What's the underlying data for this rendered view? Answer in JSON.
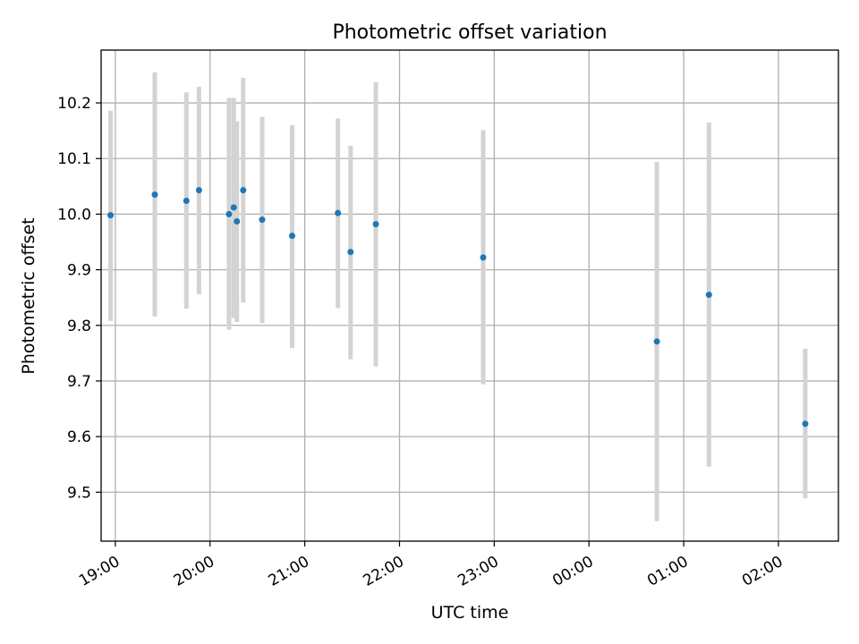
{
  "chart_data": {
    "type": "scatter",
    "title": "Photometric offset variation",
    "xlabel": "UTC time",
    "ylabel": "Photometric offset",
    "x_axis_kind": "time",
    "xlim": [
      "2000-01-01T18:51",
      "2000-01-02T02:38"
    ],
    "ylim": [
      9.412,
      10.295
    ],
    "xticks": [
      {
        "t": "2000-01-01T19:00",
        "label": "19:00"
      },
      {
        "t": "2000-01-01T20:00",
        "label": "20:00"
      },
      {
        "t": "2000-01-01T21:00",
        "label": "21:00"
      },
      {
        "t": "2000-01-01T22:00",
        "label": "22:00"
      },
      {
        "t": "2000-01-01T23:00",
        "label": "23:00"
      },
      {
        "t": "2000-01-02T00:00",
        "label": "00:00"
      },
      {
        "t": "2000-01-02T01:00",
        "label": "01:00"
      },
      {
        "t": "2000-01-02T02:00",
        "label": "02:00"
      }
    ],
    "yticks": [
      9.5,
      9.6,
      9.7,
      9.8,
      9.9,
      10.0,
      10.1,
      10.2
    ],
    "ytick_labels": [
      "9.5",
      "9.6",
      "9.7",
      "9.8",
      "9.9",
      "10.0",
      "10.1",
      "10.2"
    ],
    "grid": true,
    "point_color": "#1f77b4",
    "errorbar_color": "#d3d3d3",
    "series": [
      {
        "points": [
          {
            "t": "2000-01-01T18:57",
            "y": 9.998,
            "ymin": 9.808,
            "ymax": 10.186
          },
          {
            "t": "2000-01-01T19:25",
            "y": 10.035,
            "ymin": 9.816,
            "ymax": 10.255
          },
          {
            "t": "2000-01-01T19:45",
            "y": 10.024,
            "ymin": 9.83,
            "ymax": 10.219
          },
          {
            "t": "2000-01-01T19:53",
            "y": 10.043,
            "ymin": 9.856,
            "ymax": 10.229
          },
          {
            "t": "2000-01-01T20:12",
            "y": 10.0,
            "ymin": 9.792,
            "ymax": 10.209
          },
          {
            "t": "2000-01-01T20:15",
            "y": 10.012,
            "ymin": 9.813,
            "ymax": 10.209
          },
          {
            "t": "2000-01-01T20:17",
            "y": 9.987,
            "ymin": 9.806,
            "ymax": 10.167
          },
          {
            "t": "2000-01-01T20:21",
            "y": 10.043,
            "ymin": 9.841,
            "ymax": 10.245
          },
          {
            "t": "2000-01-01T20:33",
            "y": 9.99,
            "ymin": 9.804,
            "ymax": 10.175
          },
          {
            "t": "2000-01-01T20:52",
            "y": 9.961,
            "ymin": 9.759,
            "ymax": 10.16
          },
          {
            "t": "2000-01-01T21:21",
            "y": 10.002,
            "ymin": 9.831,
            "ymax": 10.172
          },
          {
            "t": "2000-01-01T21:29",
            "y": 9.932,
            "ymin": 9.739,
            "ymax": 10.123
          },
          {
            "t": "2000-01-01T21:45",
            "y": 9.982,
            "ymin": 9.726,
            "ymax": 10.237
          },
          {
            "t": "2000-01-01T22:53",
            "y": 9.922,
            "ymin": 9.694,
            "ymax": 10.151
          },
          {
            "t": "2000-01-02T00:43",
            "y": 9.771,
            "ymin": 9.448,
            "ymax": 10.094
          },
          {
            "t": "2000-01-02T01:16",
            "y": 9.855,
            "ymin": 9.546,
            "ymax": 10.165
          },
          {
            "t": "2000-01-02T02:17",
            "y": 9.623,
            "ymin": 9.489,
            "ymax": 9.758
          }
        ]
      }
    ]
  }
}
